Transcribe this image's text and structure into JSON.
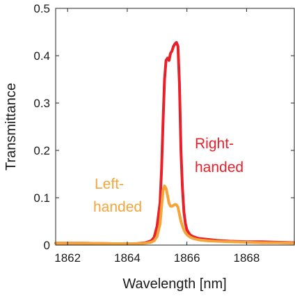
{
  "chart_data": {
    "type": "line",
    "xlabel": "Wavelength [nm]",
    "ylabel": "Transmittance",
    "xlim": [
      1861.6,
      1869.6
    ],
    "ylim": [
      0,
      0.5
    ],
    "xticks": [
      "1862",
      "1864",
      "1866",
      "1868"
    ],
    "xtick_values": [
      1862,
      1864,
      1866,
      1868
    ],
    "yticks": [
      "0",
      "0.1",
      "0.2",
      "0.3",
      "0.4",
      "0.5"
    ],
    "ytick_values": [
      0,
      0.1,
      0.2,
      0.3,
      0.4,
      0.5
    ],
    "grid": false,
    "legend": "none",
    "series": [
      {
        "label_lines": [
          "Right-",
          "handed"
        ],
        "color": "#e8202a",
        "x": [
          1861.6,
          1862.5,
          1863.5,
          1864.3,
          1864.6,
          1864.8,
          1864.9,
          1865.0,
          1865.1,
          1865.15,
          1865.2,
          1865.25,
          1865.3,
          1865.35,
          1865.4,
          1865.45,
          1865.5,
          1865.55,
          1865.6,
          1865.65,
          1865.7,
          1865.75,
          1865.8,
          1865.85,
          1865.9,
          1865.95,
          1866.0,
          1866.1,
          1866.2,
          1866.4,
          1866.7,
          1867.0,
          1867.5,
          1868.0,
          1868.5,
          1869.0,
          1869.6
        ],
        "values": [
          0.004,
          0.004,
          0.003,
          0.003,
          0.005,
          0.009,
          0.016,
          0.04,
          0.09,
          0.16,
          0.26,
          0.35,
          0.39,
          0.395,
          0.39,
          0.405,
          0.41,
          0.42,
          0.425,
          0.428,
          0.42,
          0.34,
          0.2,
          0.12,
          0.07,
          0.045,
          0.032,
          0.022,
          0.018,
          0.014,
          0.012,
          0.01,
          0.008,
          0.007,
          0.007,
          0.006,
          0.005
        ]
      },
      {
        "label_lines": [
          "Left-",
          "handed"
        ],
        "color": "#f5a43a",
        "x": [
          1861.6,
          1862.5,
          1863.5,
          1864.3,
          1864.6,
          1864.8,
          1864.9,
          1865.0,
          1865.1,
          1865.15,
          1865.2,
          1865.25,
          1865.3,
          1865.35,
          1865.4,
          1865.45,
          1865.5,
          1865.55,
          1865.6,
          1865.65,
          1865.7,
          1865.75,
          1865.8,
          1865.85,
          1865.9,
          1865.95,
          1866.0,
          1866.1,
          1866.2,
          1866.4,
          1866.7,
          1867.0,
          1867.5,
          1868.0,
          1868.5,
          1869.0,
          1869.6
        ],
        "values": [
          0.004,
          0.004,
          0.003,
          0.003,
          0.004,
          0.006,
          0.009,
          0.018,
          0.045,
          0.08,
          0.115,
          0.125,
          0.12,
          0.105,
          0.088,
          0.082,
          0.082,
          0.084,
          0.086,
          0.085,
          0.08,
          0.065,
          0.05,
          0.04,
          0.032,
          0.026,
          0.022,
          0.017,
          0.014,
          0.011,
          0.009,
          0.008,
          0.007,
          0.006,
          0.005,
          0.005,
          0.004
        ]
      }
    ]
  }
}
